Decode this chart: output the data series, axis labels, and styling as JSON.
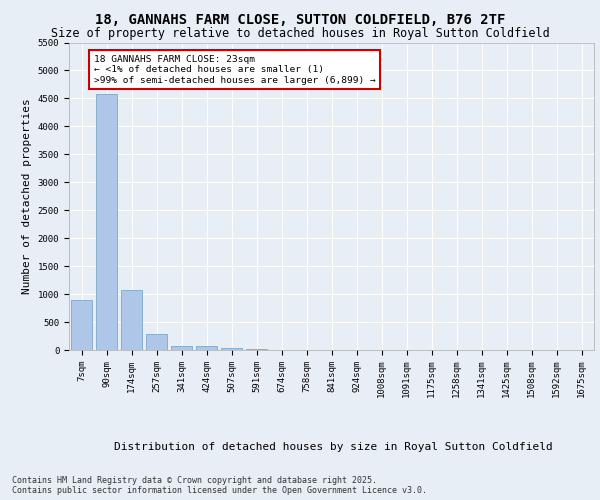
{
  "title": "18, GANNAHS FARM CLOSE, SUTTON COLDFIELD, B76 2TF",
  "subtitle": "Size of property relative to detached houses in Royal Sutton Coldfield",
  "xlabel": "Distribution of detached houses by size in Royal Sutton Coldfield",
  "ylabel": "Number of detached properties",
  "categories": [
    "7sqm",
    "90sqm",
    "174sqm",
    "257sqm",
    "341sqm",
    "424sqm",
    "507sqm",
    "591sqm",
    "674sqm",
    "758sqm",
    "841sqm",
    "924sqm",
    "1008sqm",
    "1091sqm",
    "1175sqm",
    "1258sqm",
    "1341sqm",
    "1425sqm",
    "1508sqm",
    "1592sqm",
    "1675sqm"
  ],
  "values": [
    900,
    4570,
    1080,
    290,
    75,
    65,
    40,
    20,
    0,
    0,
    0,
    0,
    0,
    0,
    0,
    0,
    0,
    0,
    0,
    0,
    0
  ],
  "bar_color": "#aec6e8",
  "bar_edge_color": "#6a9fc8",
  "annotation_text": "18 GANNAHS FARM CLOSE: 23sqm\n← <1% of detached houses are smaller (1)\n>99% of semi-detached houses are larger (6,899) →",
  "annotation_box_color": "#ffffff",
  "annotation_box_edge_color": "#cc0000",
  "ylim": [
    0,
    5500
  ],
  "yticks": [
    0,
    500,
    1000,
    1500,
    2000,
    2500,
    3000,
    3500,
    4000,
    4500,
    5000,
    5500
  ],
  "bg_color": "#e8eef5",
  "plot_bg_color": "#e8eef5",
  "grid_color": "#ffffff",
  "footer_text": "Contains HM Land Registry data © Crown copyright and database right 2025.\nContains public sector information licensed under the Open Government Licence v3.0.",
  "title_fontsize": 10,
  "subtitle_fontsize": 8.5,
  "tick_fontsize": 6.5,
  "ylabel_fontsize": 8,
  "xlabel_fontsize": 8,
  "footer_fontsize": 6
}
